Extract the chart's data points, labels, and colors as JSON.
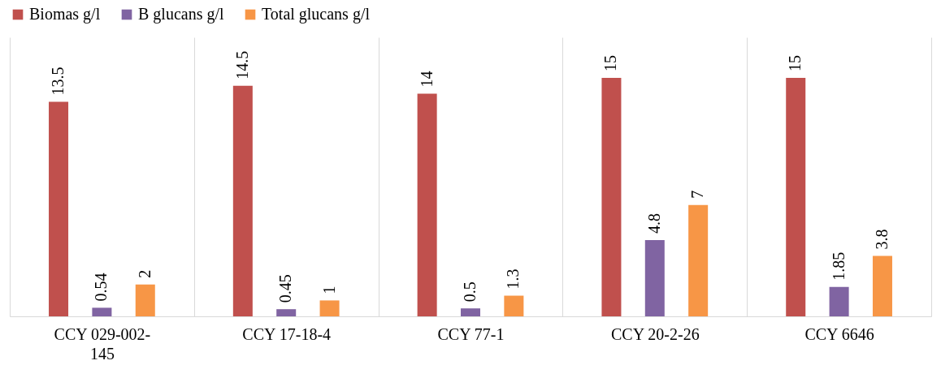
{
  "chart_data": {
    "type": "bar",
    "categories": [
      "CCY 029-002-145",
      "CCY 17-18-4",
      "CCY 77-1",
      "CCY 20-2-26",
      "CCY 6646"
    ],
    "series": [
      {
        "name": "Biomas g/l",
        "color": "#c0504d",
        "values": [
          13.5,
          14.5,
          14,
          15,
          15
        ]
      },
      {
        "name": "B glucans g/l",
        "color": "#8064a2",
        "values": [
          0.54,
          0.45,
          0.5,
          4.8,
          1.85
        ]
      },
      {
        "name": "Total glucans g/l",
        "color": "#f79646",
        "values": [
          2,
          1,
          1.3,
          7,
          3.8
        ]
      }
    ],
    "data_labels": true,
    "legend": "top",
    "grid": "x"
  }
}
